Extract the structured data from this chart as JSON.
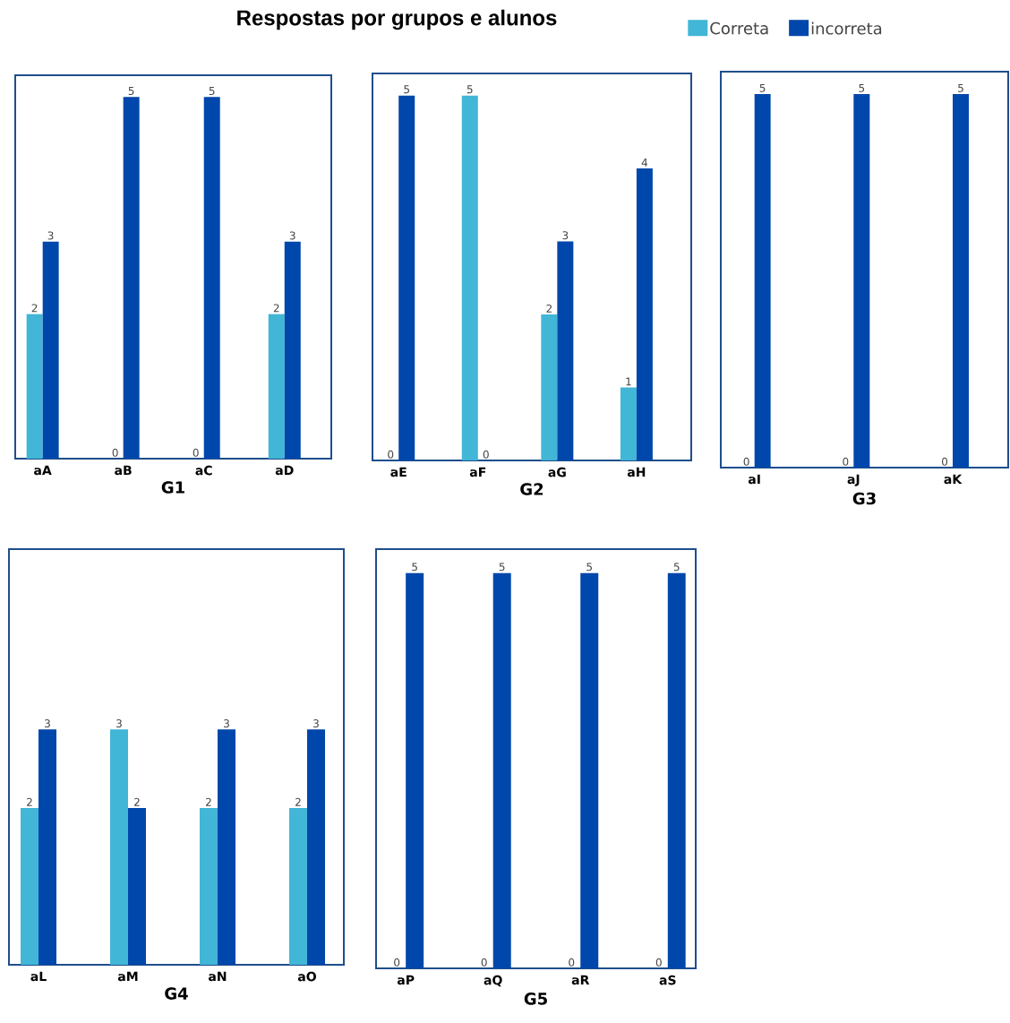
{
  "chart_data": [
    {
      "type": "bar",
      "title": "Respostas por grupos e alunos",
      "legend": "top",
      "data_labels": true,
      "xlabel": "G1",
      "categories": [
        "aA",
        "aB",
        "aC",
        "aD"
      ],
      "ylim": [
        0,
        5.3
      ],
      "series": [
        {
          "name": "Correta",
          "color": "#41b6d6",
          "values": [
            2,
            0,
            0,
            2
          ]
        },
        {
          "name": "incorreta",
          "color": "#0047ab",
          "values": [
            3,
            5,
            5,
            3
          ]
        }
      ]
    },
    {
      "type": "bar",
      "data_labels": true,
      "xlabel": "G2",
      "categories": [
        "aE",
        "aF",
        "aG",
        "aH"
      ],
      "ylim": [
        0,
        5.3
      ],
      "series": [
        {
          "color": "#41b6d6",
          "values": [
            0,
            5,
            2,
            1
          ]
        },
        {
          "color": "#0047ab",
          "values": [
            5,
            0,
            3,
            4
          ]
        }
      ]
    },
    {
      "type": "bar",
      "data_labels": true,
      "xlabel": "G3",
      "categories": [
        "aI",
        "aJ",
        "aK"
      ],
      "ylim": [
        0,
        5.3
      ],
      "series": [
        {
          "color": "#41b6d6",
          "values": [
            0,
            0,
            0
          ]
        },
        {
          "color": "#0047ab",
          "values": [
            5,
            5,
            5
          ]
        }
      ]
    },
    {
      "type": "bar",
      "data_labels": true,
      "xlabel": "G4",
      "categories": [
        "aL",
        "aM",
        "aN",
        "aO"
      ],
      "ylim": [
        0,
        5.3
      ],
      "series": [
        {
          "color": "#41b6d6",
          "values": [
            2,
            3,
            2,
            2
          ]
        },
        {
          "color": "#0047ab",
          "values": [
            3,
            2,
            3,
            3
          ]
        }
      ]
    },
    {
      "type": "bar",
      "data_labels": true,
      "xlabel": "G5",
      "categories": [
        "aP",
        "aQ",
        "aR",
        "aS"
      ],
      "ylim": [
        0,
        5.3
      ],
      "series": [
        {
          "color": "#41b6d6",
          "values": [
            0,
            0,
            0,
            0
          ]
        },
        {
          "color": "#0047ab",
          "values": [
            5,
            5,
            5,
            5
          ]
        }
      ]
    }
  ]
}
